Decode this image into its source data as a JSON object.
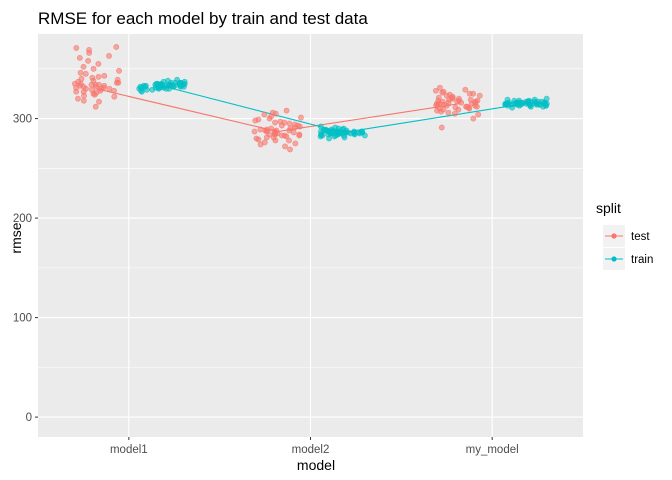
{
  "chart_data": {
    "type": "scatter",
    "title": "RMSE for each model by train and test data",
    "xlabel": "model",
    "ylabel": "rmse",
    "categories": [
      "model1",
      "model2",
      "my_model"
    ],
    "ylim": [
      -20,
      385
    ],
    "yticks": [
      0,
      100,
      200,
      300
    ],
    "grid": true,
    "legend": {
      "title": "split",
      "position": "right",
      "entries": [
        "test",
        "train"
      ]
    },
    "colors": {
      "test": "#F8766D",
      "train": "#00BFC4",
      "panel": "#EBEBEB",
      "grid": "#FFFFFF"
    },
    "series": [
      {
        "name": "test",
        "color": "#F8766D",
        "points_by_category": [
          [
            312,
            317,
            320,
            323,
            325,
            326,
            327,
            328,
            328,
            329,
            330,
            330,
            331,
            331,
            332,
            332,
            333,
            333,
            334,
            334,
            335,
            335,
            336,
            336,
            337,
            338,
            339,
            340,
            341,
            342,
            343,
            345,
            346,
            348,
            350,
            352,
            355,
            358,
            361,
            363,
            366,
            369,
            371,
            372,
            318,
            322,
            324,
            327,
            330,
            334
          ],
          [
            269,
            272,
            274,
            276,
            278,
            279,
            280,
            281,
            282,
            283,
            283,
            284,
            284,
            285,
            285,
            286,
            286,
            287,
            287,
            288,
            288,
            289,
            289,
            290,
            291,
            292,
            293,
            294,
            295,
            296,
            297,
            298,
            300,
            302,
            304,
            306,
            308,
            278,
            281,
            284,
            287,
            290,
            293,
            296,
            299,
            301,
            305,
            275,
            283,
            288
          ],
          [
            291,
            300,
            304,
            306,
            308,
            309,
            310,
            311,
            312,
            312,
            313,
            313,
            314,
            314,
            315,
            315,
            316,
            316,
            317,
            317,
            318,
            318,
            319,
            320,
            321,
            322,
            323,
            324,
            325,
            326,
            327,
            328,
            329,
            331,
            305,
            307,
            309,
            311,
            313,
            315,
            317,
            319,
            321,
            323,
            325,
            312,
            316,
            320,
            310,
            318
          ]
        ],
        "mean": [
          330,
          287,
          315
        ]
      },
      {
        "name": "train",
        "color": "#00BFC4",
        "points_by_category": [
          [
            327,
            328,
            329,
            329,
            330,
            330,
            331,
            331,
            331,
            332,
            332,
            332,
            333,
            333,
            333,
            333,
            334,
            334,
            334,
            334,
            335,
            335,
            335,
            336,
            336,
            336,
            337,
            337,
            338,
            339,
            330,
            331,
            332,
            333,
            334,
            335,
            332,
            333,
            334,
            331,
            336,
            333,
            332,
            334,
            333,
            335,
            330,
            332,
            334,
            333
          ],
          [
            280,
            281,
            282,
            282,
            283,
            283,
            284,
            284,
            284,
            285,
            285,
            285,
            285,
            286,
            286,
            286,
            286,
            287,
            287,
            287,
            287,
            288,
            288,
            288,
            289,
            289,
            290,
            290,
            291,
            292,
            283,
            284,
            285,
            286,
            287,
            288,
            285,
            286,
            287,
            284,
            289,
            286,
            285,
            287,
            286,
            288,
            283,
            285,
            287,
            286
          ],
          [
            311,
            312,
            312,
            313,
            313,
            313,
            314,
            314,
            314,
            314,
            315,
            315,
            315,
            315,
            315,
            316,
            316,
            316,
            316,
            317,
            317,
            317,
            318,
            318,
            319,
            319,
            320,
            313,
            314,
            315,
            316,
            317,
            315,
            316,
            314,
            316,
            315,
            317,
            314,
            316,
            315,
            313,
            318,
            316,
            314,
            315,
            316,
            317,
            315,
            314
          ]
        ],
        "mean": [
          333,
          286,
          315
        ]
      }
    ]
  }
}
